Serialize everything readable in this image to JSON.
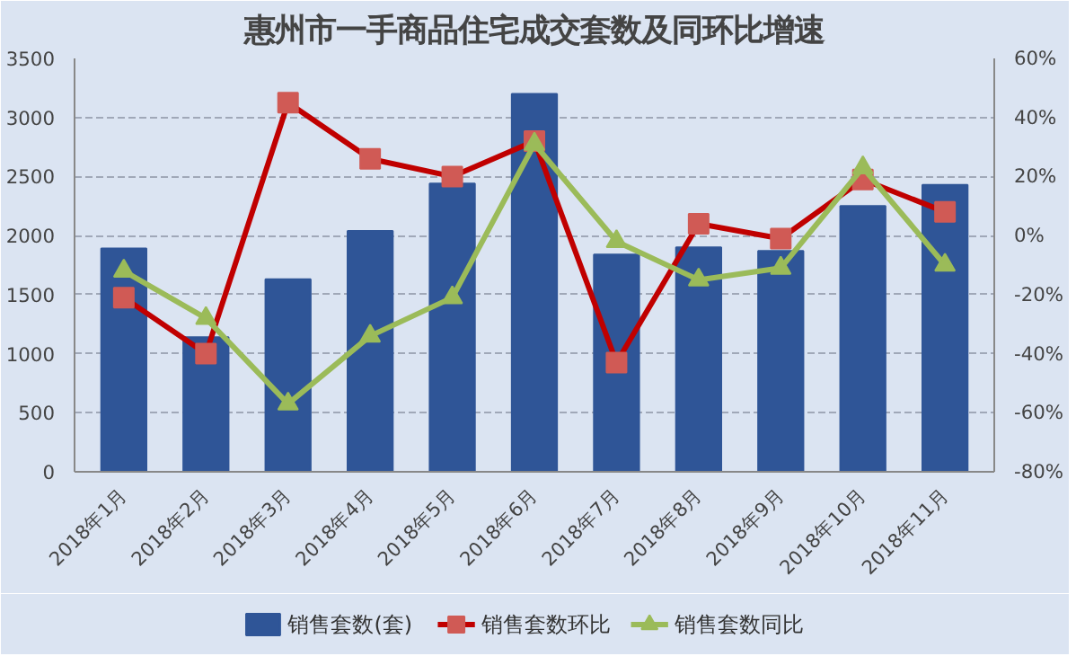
{
  "chart_data": {
    "type": "bar",
    "title": "惠州市一手商品住宅成交套数及同环比增速",
    "categories": [
      "2018年1月",
      "2018年2月",
      "2018年3月",
      "2018年4月",
      "2018年5月",
      "2018年6月",
      "2018年7月",
      "2018年8月",
      "2018年9月",
      "2018年10月",
      "2018年11月"
    ],
    "series": [
      {
        "name": "销售套数(套)",
        "color": "#2f5597",
        "values": [
          1890,
          1140,
          1630,
          2040,
          2440,
          3200,
          1840,
          1900,
          1870,
          2250,
          2430
        ]
      },
      {
        "name": "销售套数环比",
        "type": "line",
        "axis": "y2",
        "color": "#c00000",
        "marker": "square",
        "values": [
          -21,
          -40,
          45,
          26,
          20,
          32,
          -43,
          4,
          -1,
          19,
          8
        ]
      },
      {
        "name": "销售套数同比",
        "type": "line",
        "axis": "y2",
        "color": "#9bbb59",
        "marker": "triangle",
        "values": [
          -12,
          -28,
          -57,
          -34,
          -21,
          31,
          -2,
          -15,
          -11,
          23,
          -10
        ]
      }
    ],
    "ylim": [
      0,
      3500
    ],
    "yticks": [
      0,
      500,
      1000,
      1500,
      2000,
      2500,
      3000,
      3500
    ],
    "y2lim": [
      -80,
      60
    ],
    "y2ticks": [
      {
        "value": -80,
        "label": "-80%"
      },
      {
        "value": -60,
        "label": "-60%"
      },
      {
        "value": -40,
        "label": "-40%"
      },
      {
        "value": -20,
        "label": "-20%"
      },
      {
        "value": 0,
        "label": "0%"
      },
      {
        "value": 20,
        "label": "20%"
      },
      {
        "value": 40,
        "label": "40%"
      },
      {
        "value": 60,
        "label": "60%"
      }
    ],
    "grid": "y",
    "legend": "bottom",
    "line_style": "solid"
  }
}
